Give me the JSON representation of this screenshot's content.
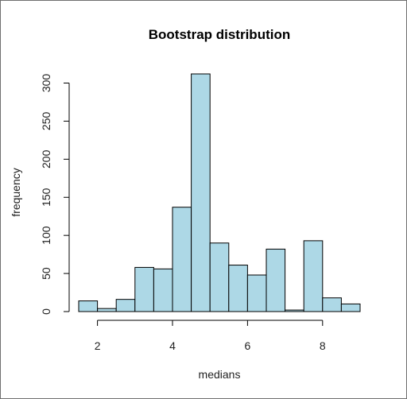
{
  "chart_data": {
    "type": "bar",
    "title": "Bootstrap distribution",
    "xlabel": "medians",
    "ylabel": "frequency",
    "bar_color": "#add8e6",
    "bin_edges": [
      1.5,
      2.0,
      2.5,
      3.0,
      3.5,
      4.0,
      4.5,
      5.0,
      5.5,
      6.0,
      6.5,
      7.0,
      7.5,
      8.0,
      8.5,
      9.0
    ],
    "values": [
      14,
      4,
      16,
      58,
      56,
      137,
      312,
      90,
      61,
      48,
      82,
      2,
      93,
      18,
      10
    ],
    "xlim": [
      1.5,
      9.0
    ],
    "ylim": [
      0,
      312
    ],
    "x_ticks": [
      2,
      4,
      6,
      8
    ],
    "y_ticks": [
      0,
      50,
      100,
      150,
      200,
      250,
      300
    ],
    "grid": false,
    "legend": "none"
  }
}
